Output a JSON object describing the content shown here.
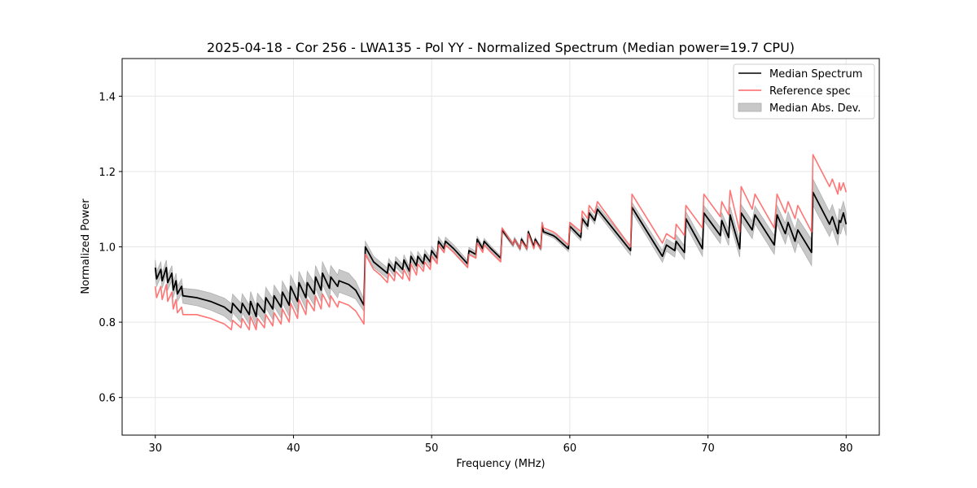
{
  "chart_data": {
    "type": "line",
    "title": "2025-04-18 - Cor 256 - LWA135 - Pol YY - Normalized Spectrum (Median power=19.7 CPU)",
    "xlabel": "Frequency (MHz)",
    "ylabel": "Normalized Power",
    "xlim": [
      27.6,
      82.4
    ],
    "ylim": [
      0.5,
      1.5
    ],
    "xticks": [
      30,
      40,
      50,
      60,
      70,
      80
    ],
    "yticks": [
      0.6,
      0.8,
      1.0,
      1.2,
      1.4
    ],
    "xtick_labels": [
      "30",
      "40",
      "50",
      "60",
      "70",
      "80"
    ],
    "ytick_labels": [
      "0.6",
      "0.8",
      "1.0",
      "1.2",
      "1.4"
    ],
    "grid": true,
    "legend_position": "top-right",
    "legend": [
      {
        "label": "Median Spectrum",
        "kind": "line",
        "color": "#000000"
      },
      {
        "label": "Reference spec",
        "kind": "line",
        "color": "#ff6666"
      },
      {
        "label": "Median Abs. Dev.",
        "kind": "patch",
        "color": "#c0c0c0"
      }
    ],
    "series": [
      {
        "name": "Median Spectrum",
        "color": "#000000",
        "x": [
          30.0,
          30.1,
          30.4,
          30.5,
          30.8,
          30.9,
          31.2,
          31.3,
          31.5,
          31.6,
          31.9,
          32.0,
          33.0,
          34.0,
          35.0,
          35.5,
          35.6,
          36.2,
          36.3,
          36.8,
          36.9,
          37.3,
          37.4,
          37.9,
          38.0,
          38.5,
          38.6,
          39.1,
          39.2,
          39.7,
          39.8,
          40.3,
          40.4,
          40.9,
          41.0,
          41.5,
          41.6,
          42.0,
          42.1,
          42.6,
          42.7,
          43.2,
          43.3,
          44.0,
          44.5,
          45.1,
          45.2,
          45.8,
          46.3,
          46.8,
          46.9,
          47.3,
          47.4,
          47.9,
          48.0,
          48.4,
          48.5,
          48.9,
          49.0,
          49.4,
          49.5,
          49.9,
          50.0,
          50.4,
          50.5,
          50.9,
          51.0,
          51.6,
          52.6,
          52.7,
          53.2,
          53.3,
          53.7,
          53.8,
          54.3,
          55.0,
          55.1,
          55.9,
          56.0,
          56.4,
          56.5,
          56.9,
          57.0,
          57.4,
          57.5,
          57.9,
          58.0,
          58.1,
          58.8,
          59.0,
          59.9,
          60.0,
          60.8,
          60.9,
          61.3,
          61.4,
          61.8,
          62.0,
          64.4,
          64.5,
          66.7,
          67.0,
          67.6,
          67.7,
          68.3,
          68.4,
          69.6,
          69.7,
          70.9,
          71.0,
          71.5,
          71.6,
          72.3,
          72.4,
          73.2,
          73.4,
          74.8,
          75.0,
          75.6,
          75.8,
          76.3,
          76.5,
          77.5,
          77.6,
          78.8,
          79.0,
          79.4,
          79.5,
          79.6,
          79.8,
          80.0
        ],
        "y": [
          0.945,
          0.915,
          0.94,
          0.91,
          0.945,
          0.905,
          0.93,
          0.885,
          0.91,
          0.875,
          0.895,
          0.87,
          0.865,
          0.855,
          0.84,
          0.825,
          0.85,
          0.825,
          0.85,
          0.82,
          0.855,
          0.815,
          0.85,
          0.825,
          0.865,
          0.835,
          0.87,
          0.84,
          0.88,
          0.845,
          0.895,
          0.855,
          0.905,
          0.865,
          0.905,
          0.875,
          0.92,
          0.885,
          0.93,
          0.89,
          0.92,
          0.895,
          0.91,
          0.9,
          0.885,
          0.845,
          1.0,
          0.96,
          0.945,
          0.93,
          0.955,
          0.935,
          0.96,
          0.94,
          0.965,
          0.935,
          0.975,
          0.95,
          0.975,
          0.955,
          0.98,
          0.96,
          0.99,
          0.97,
          1.015,
          0.995,
          1.015,
          0.995,
          0.955,
          0.99,
          0.98,
          1.02,
          0.995,
          1.015,
          0.995,
          0.97,
          1.045,
          1.005,
          1.02,
          0.995,
          1.02,
          0.995,
          1.04,
          1.0,
          1.02,
          0.995,
          1.055,
          1.04,
          1.03,
          1.025,
          0.995,
          1.055,
          1.025,
          1.075,
          1.055,
          1.09,
          1.07,
          1.1,
          0.99,
          1.105,
          0.975,
          1.005,
          0.99,
          1.015,
          0.985,
          1.075,
          0.995,
          1.09,
          1.03,
          1.07,
          1.025,
          1.085,
          0.995,
          1.09,
          1.045,
          1.085,
          1.005,
          1.085,
          1.035,
          1.065,
          1.015,
          1.045,
          0.985,
          1.145,
          1.06,
          1.08,
          1.035,
          1.07,
          1.065,
          1.09,
          1.06
        ]
      },
      {
        "name": "Reference spec",
        "color": "#ff6666",
        "x": [
          30.0,
          30.1,
          30.4,
          30.5,
          30.8,
          30.9,
          31.2,
          31.3,
          31.5,
          31.6,
          31.9,
          32.0,
          33.0,
          34.0,
          35.0,
          35.5,
          35.6,
          36.2,
          36.3,
          36.8,
          36.9,
          37.3,
          37.4,
          37.9,
          38.0,
          38.5,
          38.6,
          39.1,
          39.2,
          39.7,
          39.8,
          40.3,
          40.4,
          40.9,
          41.0,
          41.5,
          41.6,
          42.0,
          42.1,
          42.6,
          42.7,
          43.2,
          43.3,
          44.0,
          44.5,
          45.1,
          45.2,
          45.8,
          46.3,
          46.8,
          46.9,
          47.3,
          47.4,
          47.9,
          48.0,
          48.4,
          48.5,
          48.9,
          49.0,
          49.4,
          49.5,
          49.9,
          50.0,
          50.4,
          50.5,
          50.9,
          51.0,
          51.6,
          52.6,
          52.7,
          53.2,
          53.3,
          53.7,
          53.8,
          54.3,
          55.0,
          55.1,
          55.9,
          56.0,
          56.4,
          56.5,
          56.9,
          57.0,
          57.4,
          57.5,
          57.9,
          58.0,
          58.1,
          58.8,
          59.0,
          59.9,
          60.0,
          60.8,
          60.9,
          61.3,
          61.4,
          61.8,
          62.0,
          64.4,
          64.5,
          66.7,
          67.0,
          67.6,
          67.7,
          68.3,
          68.4,
          69.6,
          69.7,
          70.9,
          71.0,
          71.5,
          71.6,
          72.3,
          72.4,
          73.2,
          73.4,
          74.8,
          75.0,
          75.6,
          75.8,
          76.3,
          76.5,
          77.5,
          77.6,
          78.8,
          79.0,
          79.4,
          79.5,
          79.6,
          79.8,
          80.0
        ],
        "y": [
          0.895,
          0.865,
          0.895,
          0.86,
          0.9,
          0.855,
          0.88,
          0.835,
          0.86,
          0.825,
          0.84,
          0.82,
          0.82,
          0.81,
          0.795,
          0.78,
          0.805,
          0.785,
          0.81,
          0.78,
          0.815,
          0.78,
          0.81,
          0.785,
          0.82,
          0.79,
          0.825,
          0.795,
          0.835,
          0.8,
          0.85,
          0.81,
          0.86,
          0.82,
          0.86,
          0.83,
          0.87,
          0.835,
          0.875,
          0.84,
          0.87,
          0.84,
          0.855,
          0.845,
          0.83,
          0.795,
          0.98,
          0.94,
          0.925,
          0.905,
          0.93,
          0.91,
          0.935,
          0.915,
          0.94,
          0.91,
          0.955,
          0.925,
          0.955,
          0.935,
          0.96,
          0.94,
          0.975,
          0.955,
          1.005,
          0.985,
          1.005,
          0.985,
          0.945,
          0.98,
          0.97,
          1.01,
          0.985,
          1.005,
          0.985,
          0.96,
          1.05,
          1.005,
          1.02,
          0.995,
          1.015,
          0.995,
          1.035,
          0.995,
          1.015,
          0.995,
          1.065,
          1.05,
          1.04,
          1.035,
          1.005,
          1.065,
          1.04,
          1.095,
          1.075,
          1.11,
          1.09,
          1.12,
          1.0,
          1.14,
          1.01,
          1.035,
          1.02,
          1.06,
          1.03,
          1.11,
          1.05,
          1.14,
          1.08,
          1.12,
          1.085,
          1.15,
          1.04,
          1.16,
          1.1,
          1.14,
          1.05,
          1.14,
          1.09,
          1.12,
          1.075,
          1.11,
          1.04,
          1.245,
          1.16,
          1.18,
          1.14,
          1.17,
          1.15,
          1.17,
          1.145
        ]
      }
    ],
    "band": {
      "name": "Median Abs. Dev.",
      "color": "#c0c0c0",
      "half_width_by_x": {
        "x": [
          30,
          32,
          36,
          40,
          44,
          45.2,
          50,
          55,
          58,
          60,
          64,
          69.7,
          72,
          75,
          77.6,
          80
        ],
        "dy": [
          0.02,
          0.02,
          0.025,
          0.03,
          0.03,
          0.015,
          0.012,
          0.006,
          0.005,
          0.008,
          0.012,
          0.02,
          0.022,
          0.025,
          0.035,
          0.03
        ]
      }
    }
  }
}
